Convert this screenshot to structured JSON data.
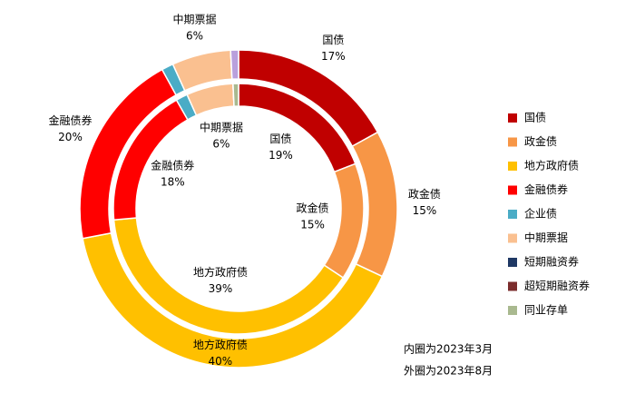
{
  "chart_data": {
    "type": "donut",
    "categories": [
      "国债",
      "政金债",
      "地方政府债",
      "金融债券",
      "企业债",
      "中期票据",
      "短期融资券",
      "超短期融资券",
      "同业存单"
    ],
    "colors": [
      "#C00000",
      "#F79646",
      "#FFC000",
      "#FF0000",
      "#4BACC6",
      "#FAC090",
      "#1F3864",
      "#7B2C2C",
      "#A9B98F"
    ],
    "series": [
      {
        "ring": "inner",
        "values": [
          19,
          15,
          39,
          18,
          1.5,
          6,
          0,
          0,
          0.7
        ],
        "value_labels": [
          "19%",
          "15%",
          "39%",
          "18%",
          null,
          "6%",
          null,
          null,
          null
        ]
      },
      {
        "ring": "outer",
        "values": [
          17,
          15,
          40,
          20,
          1.2,
          6,
          0,
          0,
          0.8
        ],
        "value_labels": [
          "17%",
          "15%",
          "40%",
          "20%",
          null,
          "6%",
          null,
          null,
          null
        ],
        "colors": [
          "#C00000",
          "#F79646",
          "#FFC000",
          "#FF0000",
          "#4BACC6",
          "#FAC090",
          "#1F3864",
          "#7B2C2C",
          "#B9A0DC"
        ]
      }
    ],
    "annotations": [
      "内圈为2023年3月",
      "外圈为2023年8月"
    ]
  }
}
